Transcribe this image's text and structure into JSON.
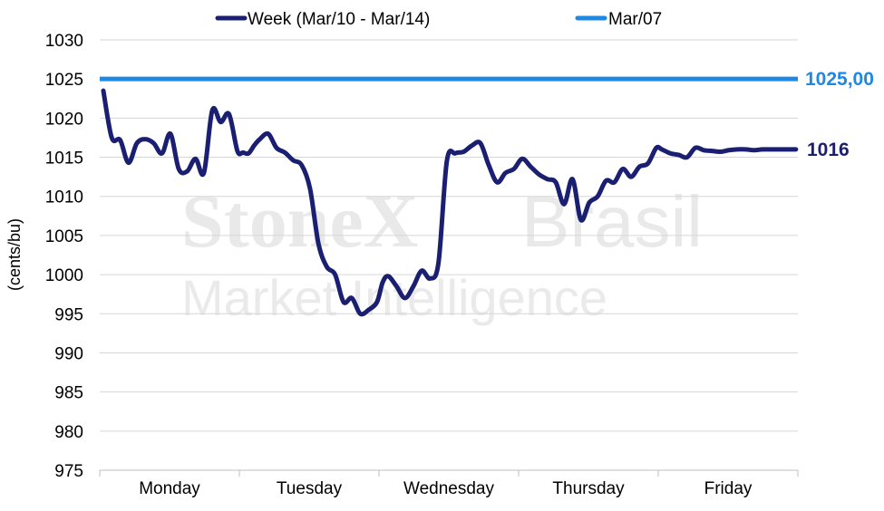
{
  "chart_data": {
    "type": "line",
    "ylabel": "(cents/bu)",
    "ylim": [
      975,
      1030
    ],
    "yticks": [
      975,
      980,
      985,
      990,
      995,
      1000,
      1005,
      1010,
      1015,
      1020,
      1025,
      1030
    ],
    "categories": [
      "Monday",
      "Tuesday",
      "Wednesday",
      "Thursday",
      "Friday"
    ],
    "grid": "horizontal",
    "legend_position": "top",
    "watermark": {
      "line1_bold": "StoneX",
      "line1_light": "Brasil",
      "line2": "Market Intelligence"
    },
    "series": [
      {
        "name": "Week (Mar/10 - Mar/14)",
        "color": "#1a1f71",
        "end_label": "1016",
        "x": [
          0,
          0.06,
          0.12,
          0.18,
          0.24,
          0.3,
          0.36,
          0.42,
          0.48,
          0.54,
          0.6,
          0.66,
          0.72,
          0.78,
          0.84,
          0.9,
          0.96,
          1.0,
          1.04,
          1.08,
          1.12,
          1.18,
          1.24,
          1.3,
          1.36,
          1.42,
          1.48,
          1.54,
          1.6,
          1.66,
          1.72,
          1.78,
          1.84,
          1.9,
          1.96,
          2.0,
          2.04,
          2.1,
          2.16,
          2.22,
          2.28,
          2.34,
          2.4,
          2.46,
          2.52,
          2.58,
          2.64,
          2.7,
          2.76,
          2.82,
          2.88,
          2.94,
          3.0,
          3.06,
          3.12,
          3.18,
          3.24,
          3.3,
          3.36,
          3.42,
          3.48,
          3.54,
          3.6,
          3.66,
          3.72,
          3.78,
          3.84,
          3.9,
          3.96,
          4.0,
          4.06,
          4.12,
          4.18,
          4.24,
          4.3,
          4.36,
          4.42,
          4.48,
          4.54,
          4.6,
          4.66,
          4.72,
          4.78,
          4.84,
          4.9,
          4.96
        ],
        "values": [
          1023.5,
          1017.5,
          1017.2,
          1014.3,
          1016.8,
          1017.3,
          1016.8,
          1015.5,
          1018.0,
          1013.5,
          1013.2,
          1014.8,
          1013.0,
          1021.0,
          1019.5,
          1020.5,
          1015.8,
          1015.6,
          1015.5,
          1016.5,
          1017.3,
          1018.0,
          1016.2,
          1015.6,
          1014.6,
          1014.0,
          1011.0,
          1004.0,
          1001.0,
          1000.0,
          996.5,
          997.0,
          995.0,
          995.5,
          996.5,
          999.0,
          999.8,
          998.5,
          997.0,
          998.5,
          1000.5,
          999.5,
          1001.5,
          1014.5,
          1015.5,
          1015.7,
          1016.5,
          1016.8,
          1014.0,
          1011.8,
          1013.0,
          1013.5,
          1014.8,
          1013.8,
          1012.8,
          1012.2,
          1011.8,
          1009.0,
          1012.2,
          1007.0,
          1009.2,
          1010.0,
          1012.0,
          1011.8,
          1013.5,
          1012.5,
          1013.8,
          1014.2,
          1016.2,
          1016.0,
          1015.5,
          1015.3,
          1015.0,
          1016.2,
          1015.9,
          1015.8,
          1015.7,
          1015.9,
          1016.0,
          1016.0,
          1015.9,
          1016.0,
          1016.0,
          1016.0,
          1016.0,
          1016.0
        ]
      },
      {
        "name": "Mar/07",
        "color": "#1e88e5",
        "end_label": "1025,00",
        "constant": 1025
      }
    ]
  }
}
